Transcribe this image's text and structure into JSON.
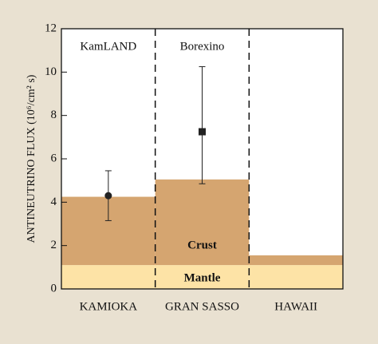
{
  "chart_data": {
    "type": "bar",
    "stacked": true,
    "ylabel": "ANTINEUTRINO FLUX (10⁶/cm² s)",
    "categories": [
      "KAMIOKA",
      "GRAN SASSO",
      "HAWAII"
    ],
    "series": [
      {
        "name": "Mantle",
        "color": "#fde3a6",
        "values": [
          1.1,
          1.1,
          1.1
        ]
      },
      {
        "name": "Crust",
        "color": "#d5a570",
        "values": [
          3.15,
          3.95,
          0.45
        ]
      }
    ],
    "measurements": {
      "names": [
        "KamLAND",
        "Borexino",
        null
      ],
      "values": [
        4.3,
        7.25,
        null
      ],
      "error_low": [
        1.15,
        2.4,
        null
      ],
      "error_high": [
        1.15,
        3.0,
        null
      ],
      "markers": [
        "circle",
        "square",
        null
      ],
      "color": "#222222"
    },
    "ylim": [
      0,
      12
    ],
    "yticks": [
      0,
      2,
      4,
      6,
      8,
      10,
      12
    ]
  }
}
